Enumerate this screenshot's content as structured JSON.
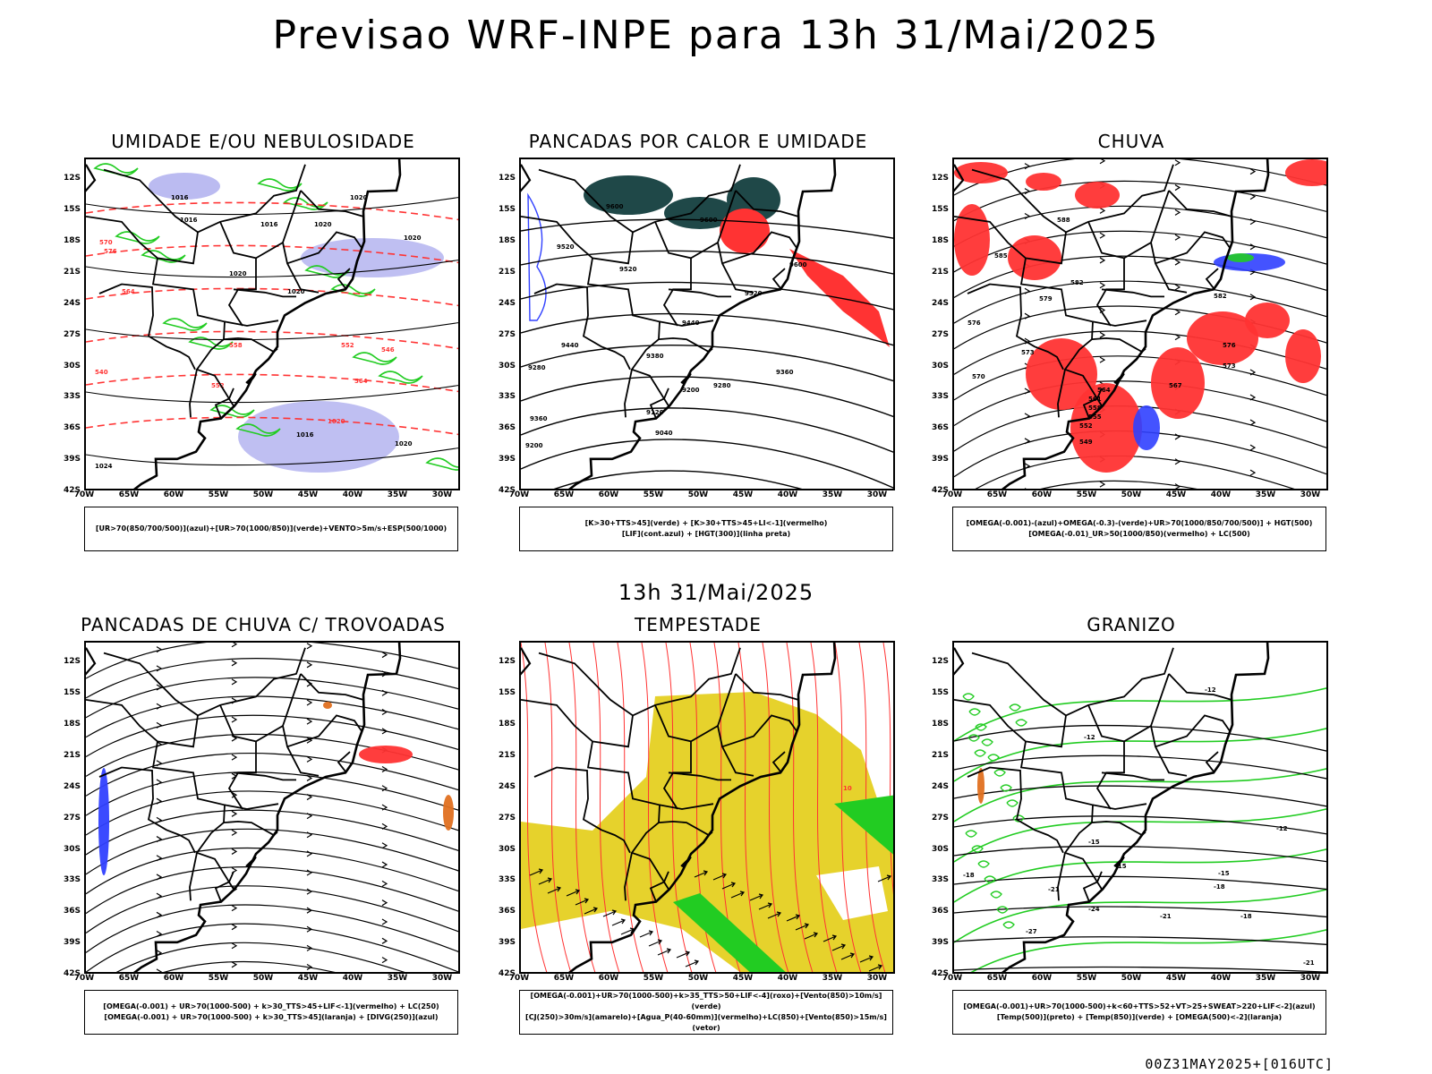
{
  "header": {
    "title": "Previsao WRF-INPE  para 13h 31/Mai/2025"
  },
  "mid_time": "13h 31/Mai/2025",
  "footer_stamp": "00Z31MAY2025+[016UTC]",
  "axes": {
    "lat_ticks": [
      "12S",
      "15S",
      "18S",
      "21S",
      "24S",
      "27S",
      "30S",
      "33S",
      "36S",
      "39S",
      "42S"
    ],
    "lon_ticks": [
      "70W",
      "65W",
      "60W",
      "55W",
      "50W",
      "45W",
      "40W",
      "35W",
      "30W"
    ]
  },
  "colors": {
    "blue": "#3040ff",
    "green": "#22cc22",
    "red": "#ff3333",
    "lavender": "#b4b4f0",
    "dark_teal": "#1f4848",
    "yellow": "#e6d22c",
    "orange": "#e07020"
  },
  "panels": [
    {
      "title": "UMIDADE E/OU NEBULOSIDADE",
      "legend": [
        "[UR>70(850/700/500)](azul)+[UR>70(1000/850)](verde)+VENTO>5m/s+ESP(500/1000)"
      ],
      "contour_labels": [
        "1016",
        "1016",
        "1016",
        "1020",
        "1020",
        "1020",
        "1020",
        "1020",
        "1024",
        "1020",
        "1016",
        "1020",
        "570",
        "576",
        "564",
        "558",
        "552",
        "546",
        "540",
        "552",
        "564"
      ]
    },
    {
      "title": "PANCADAS POR CALOR E UMIDADE",
      "legend": [
        "[K>30+TTS>45](verde) + [K>30+TTS>45+LI<-1](vermelho)",
        "[LIF](cont.azul) + [HGT(300)](linha preta)"
      ],
      "contour_labels": [
        "9600",
        "9600",
        "9520",
        "9600",
        "9520",
        "9520",
        "9440",
        "9440",
        "9360",
        "9380",
        "9280",
        "9200",
        "9360",
        "9280",
        "9120",
        "9040",
        "9200"
      ]
    },
    {
      "title": "CHUVA",
      "legend": [
        "[OMEGA(-0.001)-(azul)+OMEGA(-0.3)-(verde)+UR>70(1000/850/700/500)] + HGT(500)",
        "[OMEGA(-0.01)_UR>50(1000/850)(vermelho) + LC(500)"
      ],
      "contour_labels": [
        "588",
        "585",
        "582",
        "582",
        "579",
        "576",
        "576",
        "573",
        "573",
        "570",
        "567",
        "564",
        "561",
        "558",
        "555",
        "552",
        "549"
      ]
    },
    {
      "title": "PANCADAS DE CHUVA C/ TROVOADAS",
      "legend": [
        "[OMEGA(-0.001) + UR>70(1000-500) + k>30_TTS>45+LIF<-1](vermelho) + LC(250)",
        "[OMEGA(-0.001) + UR>70(1000-500) + k>30_TTS>45](laranja) + [DIVG(250)](azul)"
      ],
      "contour_labels": []
    },
    {
      "title": "TEMPESTADE",
      "legend": [
        "[OMEGA(-0.001)+UR>70(1000-500)+k>35_TTS>50+LIF<-4](roxo)+[Vento(850)>10m/s](verde)",
        "[CJ(250)>30m/s](amarelo)+[Agua_P(40-60mm)](vermelho)+LC(850)+[Vento(850)>15m/s](vetor)"
      ],
      "contour_labels": [
        "10"
      ]
    },
    {
      "title": "GRANIZO",
      "legend": [
        "[OMEGA(-0.001)+UR>70(1000-500)+k<60+TTS>52+VT>25+SWEAT>220+LIF<-2](azul)",
        "[Temp(500)](preto) + [Temp(850)](verde) + [OMEGA(500)<-2](laranja)"
      ],
      "contour_labels": [
        "-12",
        "-12",
        "-12",
        "-15",
        "-15",
        "-15",
        "-18",
        "-18",
        "-18",
        "-21",
        "-21",
        "-24",
        "-27",
        "-21"
      ]
    }
  ]
}
